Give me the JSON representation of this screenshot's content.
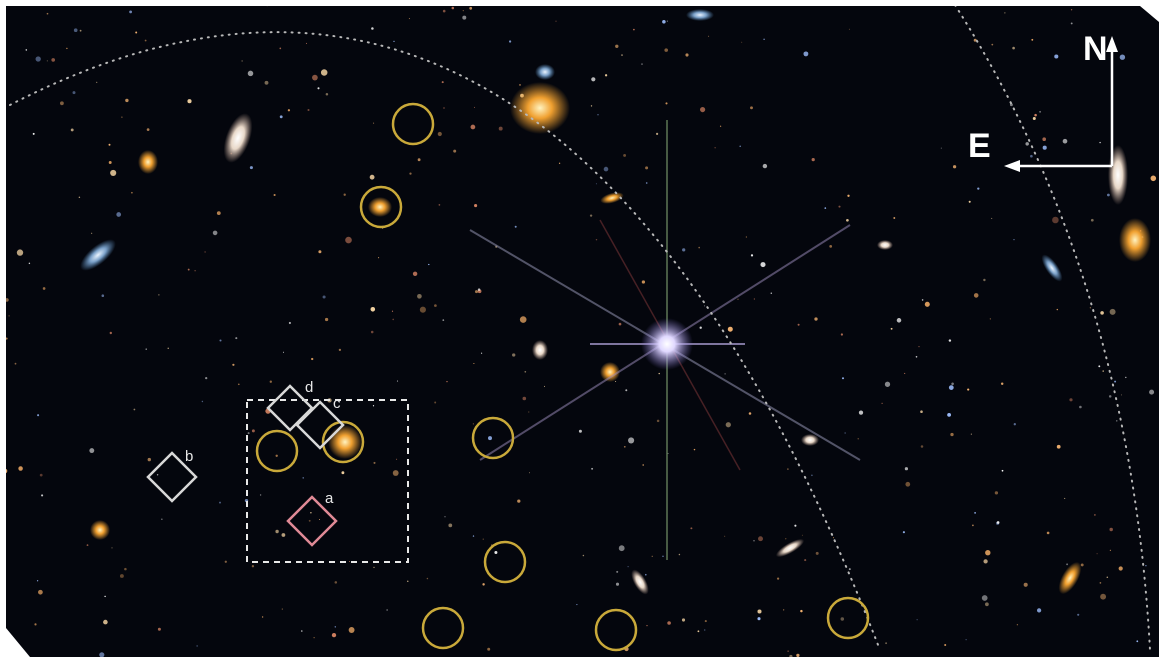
{
  "compass": {
    "north": "N",
    "east": "E"
  },
  "markers": [
    {
      "label": "a"
    },
    {
      "label": "b"
    },
    {
      "label": "c"
    },
    {
      "label": "d"
    }
  ]
}
